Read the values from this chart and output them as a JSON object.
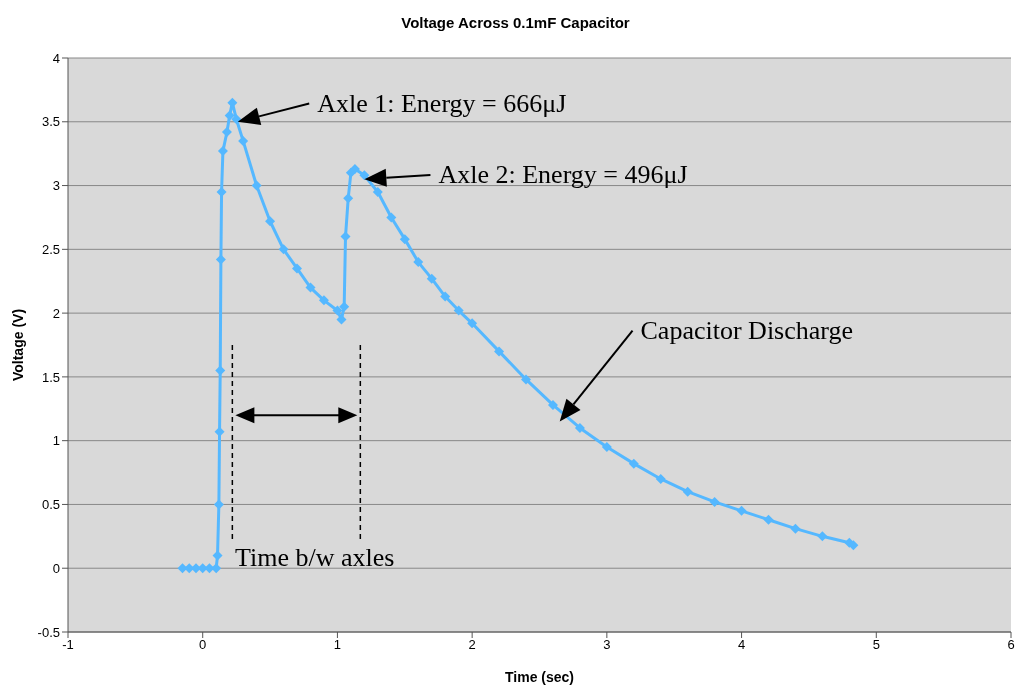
{
  "chart_data": {
    "type": "line",
    "title": "Voltage Across 0.1mF Capacitor",
    "xlabel": "Time (sec)",
    "ylabel": "Voltage (V)",
    "x": [
      -0.15,
      -0.1,
      -0.05,
      0,
      0.05,
      0.1,
      0.11,
      0.12,
      0.125,
      0.13,
      0.135,
      0.14,
      0.15,
      0.18,
      0.2,
      0.22,
      0.25,
      0.3,
      0.4,
      0.5,
      0.6,
      0.7,
      0.8,
      0.9,
      1.0,
      1.03,
      1.05,
      1.06,
      1.08,
      1.1,
      1.13,
      1.2,
      1.3,
      1.4,
      1.5,
      1.6,
      1.7,
      1.8,
      1.9,
      2.0,
      2.2,
      2.4,
      2.6,
      2.8,
      3.0,
      3.2,
      3.4,
      3.6,
      3.8,
      4.0,
      4.2,
      4.4,
      4.6,
      4.8,
      4.83
    ],
    "series": [
      {
        "color": "#55b8ff",
        "values": [
          0,
          0,
          0,
          0,
          0,
          0,
          0.1,
          0.5,
          1.07,
          1.55,
          2.42,
          2.95,
          3.27,
          3.42,
          3.55,
          3.65,
          3.52,
          3.35,
          3.0,
          2.72,
          2.5,
          2.35,
          2.2,
          2.1,
          2.02,
          1.95,
          2.05,
          2.6,
          2.9,
          3.1,
          3.13,
          3.08,
          2.95,
          2.75,
          2.58,
          2.4,
          2.27,
          2.13,
          2.02,
          1.92,
          1.7,
          1.48,
          1.28,
          1.1,
          0.95,
          0.82,
          0.7,
          0.6,
          0.52,
          0.45,
          0.38,
          0.31,
          0.25,
          0.2,
          0.18
        ]
      }
    ],
    "xlim": [
      -1,
      6
    ],
    "xticks": [
      -1,
      0,
      1,
      2,
      3,
      4,
      5,
      6
    ],
    "ylim": [
      -0.5,
      4
    ],
    "yticks": [
      -0.5,
      0,
      0.5,
      1,
      1.5,
      2,
      2.5,
      3,
      3.5,
      4
    ],
    "grid": "y",
    "legend": false,
    "marker": "diamond",
    "line_style": "solid",
    "annotations": [
      "Axle 1: Energy = 666μJ",
      "Axle 2: Energy = 496μJ",
      "Capacitor Discharge",
      "Time b/w axles"
    ]
  }
}
